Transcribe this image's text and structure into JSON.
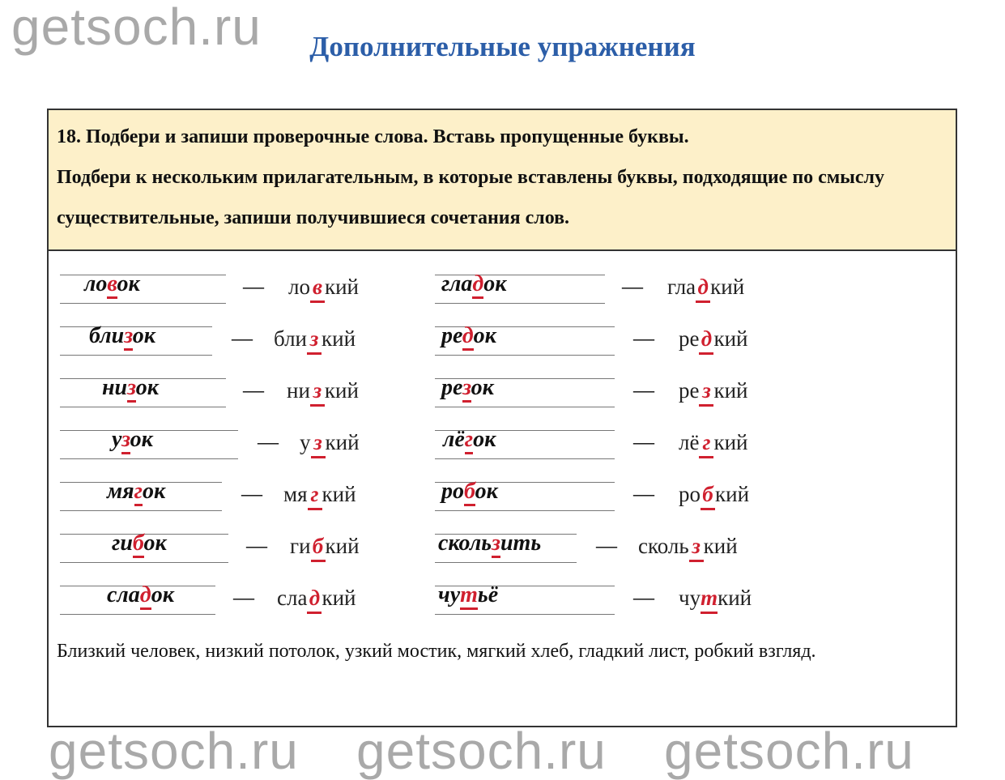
{
  "page_title": "Дополнительные упражнения",
  "watermark": "getsoch.ru",
  "task": {
    "line1": "18. Подбери и запиши проверочные слова. Вставь пропущенные буквы.",
    "line2": "Подбери к нескольким прилагательным, в которые вставлены буквы, подходящие по смыслу существительные, запиши получившиеся сочетания слов."
  },
  "dash": "—",
  "left": [
    {
      "c": [
        "ло",
        "в",
        "ок"
      ],
      "d": [
        "ло",
        "в",
        "кий"
      ]
    },
    {
      "c": [
        "бли",
        "з",
        "ок"
      ],
      "d": [
        "бли",
        "з",
        "кий"
      ]
    },
    {
      "c": [
        "ни",
        "з",
        "ок"
      ],
      "d": [
        "ни",
        "з",
        "кий"
      ]
    },
    {
      "c": [
        "у",
        "з",
        "ок"
      ],
      "d": [
        "у",
        "з",
        "кий"
      ]
    },
    {
      "c": [
        "мя",
        "г",
        "ок"
      ],
      "d": [
        "мя",
        "г",
        "кий"
      ]
    },
    {
      "c": [
        "ги",
        "б",
        "ок"
      ],
      "d": [
        "ги",
        "б",
        "кий"
      ]
    },
    {
      "c": [
        "сла",
        "д",
        "ок"
      ],
      "d": [
        "сла",
        "д",
        "кий"
      ]
    }
  ],
  "right": [
    {
      "c": [
        "гла",
        "д",
        "ок"
      ],
      "d": [
        "гла",
        "д",
        "кий"
      ]
    },
    {
      "c": [
        "ре",
        "д",
        "ок"
      ],
      "d": [
        "ре",
        "д",
        "кий"
      ]
    },
    {
      "c": [
        "ре",
        "з",
        "ок"
      ],
      "d": [
        "ре",
        "з",
        "кий"
      ]
    },
    {
      "c": [
        "лё",
        "г",
        "ок"
      ],
      "d": [
        "лё",
        "г",
        "кий"
      ]
    },
    {
      "c": [
        "ро",
        "б",
        "ок"
      ],
      "d": [
        "ро",
        "б",
        "кий"
      ]
    },
    {
      "c": [
        "сколь",
        "з",
        "ить"
      ],
      "d": [
        "сколь",
        "з",
        "кий"
      ]
    },
    {
      "c": [
        "чу",
        "т",
        "ьё"
      ],
      "d": [
        "чу",
        "т",
        "кий"
      ]
    }
  ],
  "answer": "Близкий человек, низкий потолок, узкий мостик, мягкий хлеб, гладкий лист, робкий взгляд.",
  "colors": {
    "title": "#2c5ea8",
    "task_bg": "#fdf0c9",
    "highlight": "#d0202f"
  }
}
